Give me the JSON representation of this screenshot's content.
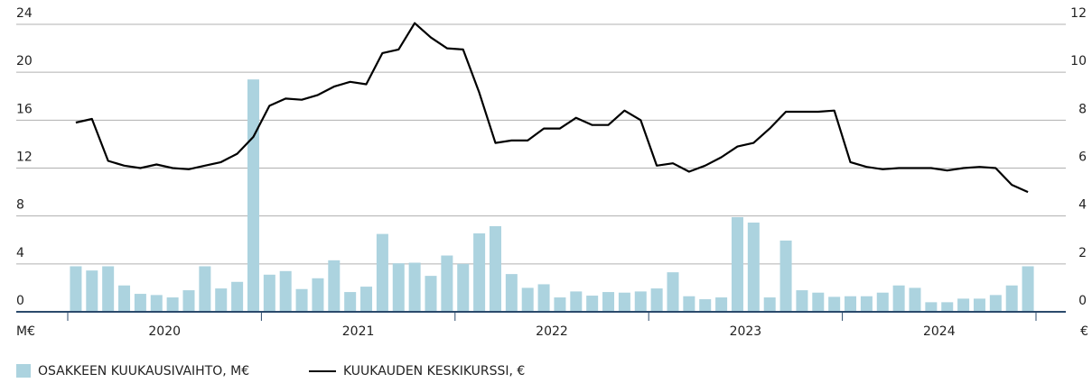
{
  "chart_data": {
    "type": "bar",
    "categories": [
      null,
      null,
      null,
      null,
      null,
      null,
      "2020",
      null,
      null,
      null,
      null,
      null,
      null,
      null,
      null,
      null,
      null,
      null,
      "2021",
      null,
      null,
      null,
      null,
      null,
      null,
      null,
      null,
      null,
      null,
      null,
      "2022",
      null,
      null,
      null,
      null,
      null,
      null,
      null,
      null,
      null,
      null,
      null,
      "2023",
      null,
      null,
      null,
      null,
      null,
      null,
      null,
      null,
      null,
      null,
      null,
      "2024",
      null,
      null,
      null,
      null,
      null
    ],
    "series": [
      {
        "name": "OSAKKEEN KUUKAUSIVAIHTO, M€",
        "type": "bar",
        "color": "#acd3df",
        "values": [
          3.8,
          3.45,
          3.8,
          2.2,
          1.5,
          1.4,
          1.2,
          1.8,
          3.8,
          1.95,
          2.5,
          19.4,
          3.1,
          3.4,
          1.9,
          2.8,
          4.3,
          1.65,
          2.1,
          6.5,
          4.05,
          4.1,
          3.0,
          4.7,
          4.0,
          6.55,
          7.15,
          3.15,
          2.0,
          2.3,
          1.2,
          1.7,
          1.35,
          1.65,
          1.6,
          1.7,
          1.95,
          3.3,
          1.3,
          1.05,
          1.2,
          7.9,
          7.45,
          1.2,
          5.95,
          1.8,
          1.6,
          1.25,
          1.3,
          1.3,
          1.6,
          2.2,
          2.0,
          0.8,
          0.8,
          1.1,
          1.1,
          1.4,
          2.2,
          3.8
        ]
      },
      {
        "name": "KUUKAUDEN KESKIKURSSI, €",
        "type": "line",
        "color": "#000000",
        "axis": "y2",
        "values": [
          7.9,
          8.05,
          6.3,
          6.1,
          6.0,
          6.15,
          6.0,
          5.95,
          6.1,
          6.25,
          6.6,
          7.3,
          8.6,
          8.9,
          8.85,
          9.05,
          9.4,
          9.6,
          9.5,
          10.8,
          10.95,
          12.05,
          11.45,
          11.0,
          10.95,
          9.15,
          7.05,
          7.15,
          7.15,
          7.65,
          7.65,
          8.1,
          7.8,
          7.8,
          8.4,
          8.0,
          6.1,
          6.2,
          5.85,
          6.1,
          6.45,
          6.9,
          7.05,
          7.65,
          8.35,
          8.35,
          8.35,
          8.4,
          6.25,
          6.05,
          5.95,
          6.0,
          6.0,
          6.0,
          5.9,
          6.0,
          6.05,
          6.0,
          5.3,
          5.0
        ]
      }
    ],
    "ylabel": "M€",
    "y2label": "€",
    "ylim": [
      0,
      24
    ],
    "yticks": [
      0,
      4,
      8,
      12,
      16,
      20,
      24
    ],
    "y2lim": [
      0,
      12
    ],
    "y2ticks": [
      0,
      2,
      4,
      6,
      8,
      10,
      12
    ],
    "grid": true
  }
}
